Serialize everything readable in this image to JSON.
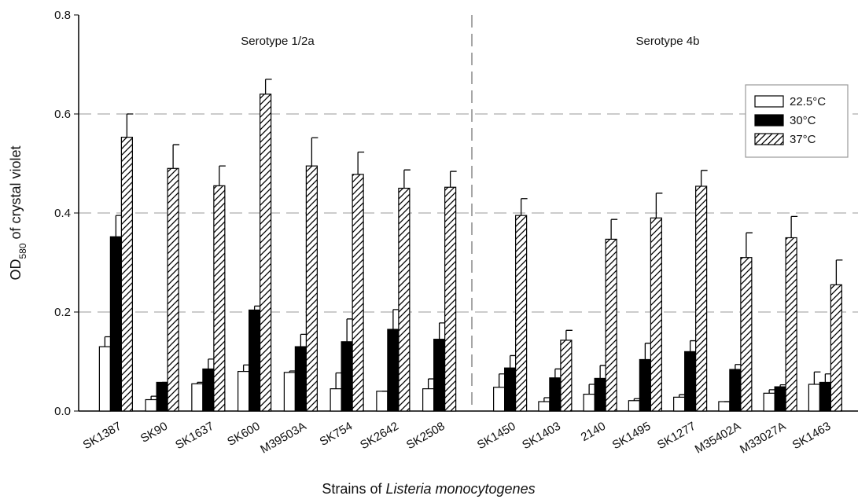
{
  "chart_data": {
    "type": "bar",
    "y_label": {
      "main": "OD",
      "sub": "580",
      "rest": "of crystal violet"
    },
    "x_label": {
      "plain": "Strains of",
      "italic": "Listeria monocytogenes"
    },
    "groups": [
      {
        "name": "Serotype 1/2a",
        "categories": [
          "SK1387",
          "SK90",
          "SK1637",
          "SK600",
          "M39503A",
          "SK754",
          "SK2642",
          "SK2508"
        ]
      },
      {
        "name": "Serotype 4b",
        "categories": [
          "SK1450",
          "SK1403",
          "2140",
          "SK1495",
          "SK1277",
          "M35402A",
          "M33027A",
          "SK1463"
        ]
      }
    ],
    "series": [
      {
        "name": "22.5°C",
        "color": "#ffffff",
        "pattern": "none",
        "values": [
          0.13,
          0.023,
          0.055,
          0.08,
          0.078,
          0.045,
          0.04,
          0.045,
          0.048,
          0.019,
          0.034,
          0.021,
          0.028,
          0.019,
          0.036,
          0.054
        ],
        "errors": [
          0.02,
          0.007,
          0.003,
          0.013,
          0.003,
          0.032,
          0.0,
          0.02,
          0.027,
          0.008,
          0.02,
          0.004,
          0.005,
          0.0,
          0.007,
          0.025
        ]
      },
      {
        "name": "30°C",
        "color": "#000000",
        "pattern": "none",
        "values": [
          0.352,
          0.058,
          0.085,
          0.204,
          0.13,
          0.14,
          0.165,
          0.145,
          0.087,
          0.067,
          0.066,
          0.104,
          0.12,
          0.084,
          0.049,
          0.058
        ],
        "errors": [
          0.043,
          0.0,
          0.02,
          0.008,
          0.025,
          0.046,
          0.04,
          0.033,
          0.025,
          0.018,
          0.026,
          0.033,
          0.022,
          0.01,
          0.004,
          0.017
        ]
      },
      {
        "name": "37°C",
        "color": "#ffffff",
        "pattern": "hatch",
        "values": [
          0.553,
          0.49,
          0.455,
          0.64,
          0.495,
          0.478,
          0.45,
          0.452,
          0.395,
          0.143,
          0.347,
          0.39,
          0.454,
          0.31,
          0.35,
          0.255
        ],
        "errors": [
          0.047,
          0.048,
          0.04,
          0.03,
          0.057,
          0.045,
          0.037,
          0.032,
          0.034,
          0.02,
          0.04,
          0.05,
          0.032,
          0.05,
          0.043,
          0.05
        ]
      }
    ],
    "ylim": [
      0,
      0.8
    ],
    "yticks": [
      {
        "value": 0,
        "label": "0.0"
      },
      {
        "value": 0.2,
        "label": "0.2"
      },
      {
        "value": 0.4,
        "label": "0.4"
      },
      {
        "value": 0.6,
        "label": "0.6"
      },
      {
        "value": 0.8,
        "label": "0.8"
      }
    ],
    "grid": true,
    "legend": "upper right"
  }
}
